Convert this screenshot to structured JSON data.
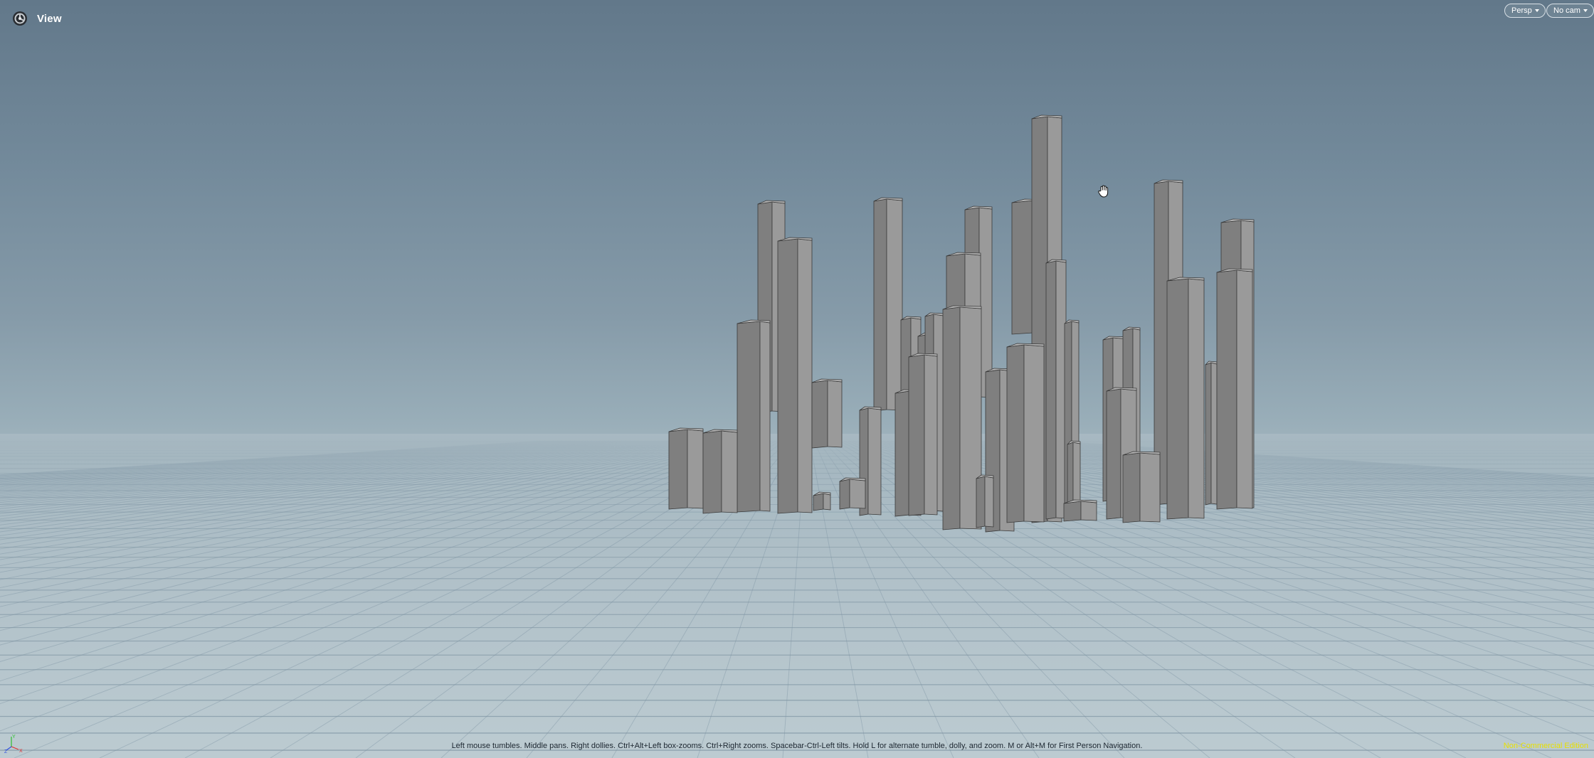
{
  "viewer": {
    "title": "View",
    "icon": "houdini-logo-icon"
  },
  "menus": {
    "projection": "Persp",
    "camera": "No cam"
  },
  "help_text": "Left mouse tumbles. Middle pans. Right dollies. Ctrl+Alt+Left box-zooms. Ctrl+Right zooms. Spacebar-Ctrl-Left tilts. Hold L for alternate tumble, dolly, and zoom. M or Alt+M for First Person Navigation.",
  "edition": "Non-Commercial Edition",
  "axis_labels": {
    "y": "Y",
    "z": "Z",
    "x": "X"
  },
  "colors": {
    "sky_top": "#62788a",
    "horizon": "#a6b8c1",
    "ground": "#bccbd1",
    "building_front": "#9a9a9a",
    "building_side": "#7f7f7f",
    "building_top": "#b4b4b4",
    "edition_text": "#e8e000",
    "axis_x": "#e03030",
    "axis_y": "#30c030",
    "axis_z": "#3050e0"
  },
  "cursor": "pan-hand-icon"
}
